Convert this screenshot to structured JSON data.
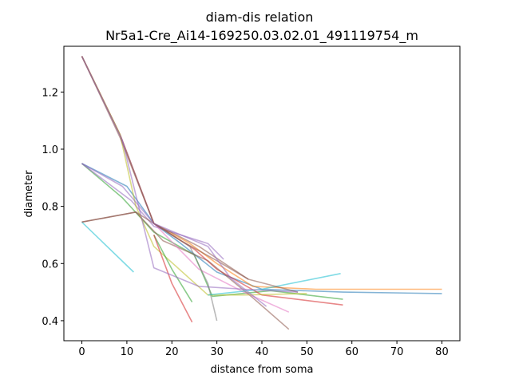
{
  "chart_data": {
    "type": "line",
    "title": "diam-dis relation",
    "subtitle": "Nr5a1-Cre_Ai14-169250.03.02.01_491119754_m",
    "xlabel": "distance from soma",
    "ylabel": "diameter",
    "xlim": [
      -4,
      84
    ],
    "ylim": [
      0.33,
      1.36
    ],
    "xticks": [
      0,
      10,
      20,
      30,
      40,
      50,
      60,
      70,
      80
    ],
    "yticks": [
      0.4,
      0.6,
      0.8,
      1.0,
      1.2
    ],
    "ytick_labels": [
      "0.4",
      "0.6",
      "0.8",
      "1.0",
      "1.2"
    ],
    "grid": false,
    "legend": "none",
    "series": [
      {
        "color": "#1f77b4",
        "x": [
          0,
          10,
          16,
          22,
          30,
          40,
          58,
          80
        ],
        "y": [
          0.95,
          0.87,
          0.74,
          0.67,
          0.57,
          0.51,
          0.5,
          0.495
        ]
      },
      {
        "color": "#ff7f0e",
        "x": [
          0,
          8.5,
          16,
          24,
          30,
          38,
          52,
          80
        ],
        "y": [
          1.325,
          1.05,
          0.74,
          0.67,
          0.6,
          0.52,
          0.51,
          0.51
        ]
      },
      {
        "color": "#2ca02c",
        "x": [
          0,
          9,
          16,
          25,
          29,
          42,
          58
        ],
        "y": [
          0.95,
          0.83,
          0.71,
          0.63,
          0.485,
          0.505,
          0.475
        ]
      },
      {
        "color": "#d62728",
        "x": [
          0,
          8.5,
          16,
          25,
          30,
          40,
          58
        ],
        "y": [
          1.325,
          1.05,
          0.74,
          0.65,
          0.58,
          0.49,
          0.455
        ]
      },
      {
        "color": "#9467bd",
        "x": [
          0,
          11,
          16,
          28,
          31.5
        ],
        "y": [
          0.95,
          0.82,
          0.73,
          0.67,
          0.615
        ]
      },
      {
        "color": "#8c564b",
        "x": [
          0,
          12,
          18,
          28,
          38,
          46
        ],
        "y": [
          0.745,
          0.78,
          0.68,
          0.61,
          0.48,
          0.37
        ]
      },
      {
        "color": "#e377c2",
        "x": [
          0,
          8.5,
          16,
          26,
          36,
          46
        ],
        "y": [
          1.325,
          1.05,
          0.74,
          0.58,
          0.5,
          0.43
        ]
      },
      {
        "color": "#7f7f7f",
        "x": [
          0,
          8.5,
          16,
          24,
          28,
          30
        ],
        "y": [
          1.325,
          1.05,
          0.74,
          0.66,
          0.53,
          0.4
        ]
      },
      {
        "color": "#bcbd22",
        "x": [
          0,
          8.5,
          12,
          16,
          28,
          36,
          50
        ],
        "y": [
          1.325,
          1.05,
          0.8,
          0.66,
          0.49,
          0.49,
          0.495
        ]
      },
      {
        "color": "#17becf",
        "x": [
          0,
          11.5
        ],
        "y": [
          0.745,
          0.57
        ]
      },
      {
        "color": "#17becf",
        "x": [
          28,
          40,
          57.5
        ],
        "y": [
          0.49,
          0.51,
          0.565
        ]
      },
      {
        "color": "#2ca02c",
        "x": [
          16,
          20,
          24.5
        ],
        "y": [
          0.7,
          0.58,
          0.465
        ]
      },
      {
        "color": "#d62728",
        "x": [
          16,
          20,
          24.5
        ],
        "y": [
          0.7,
          0.53,
          0.395
        ]
      },
      {
        "color": "#8c564b",
        "x": [
          0,
          12,
          16,
          26,
          37,
          48
        ],
        "y": [
          0.745,
          0.78,
          0.74,
          0.66,
          0.545,
          0.5
        ]
      },
      {
        "color": "#8c564b",
        "x": [
          0,
          8.5,
          16,
          22,
          30,
          37
        ],
        "y": [
          1.325,
          1.04,
          0.74,
          0.68,
          0.61,
          0.545
        ]
      },
      {
        "color": "#9467bd",
        "x": [
          0,
          9,
          16,
          26,
          36,
          48
        ],
        "y": [
          1.325,
          1.03,
          0.585,
          0.52,
          0.51,
          0.5
        ]
      },
      {
        "color": "#9467bd",
        "x": [
          0,
          9,
          16,
          22,
          28,
          33,
          41
        ],
        "y": [
          0.95,
          0.87,
          0.74,
          0.7,
          0.66,
          0.55,
          0.45
        ]
      }
    ]
  }
}
